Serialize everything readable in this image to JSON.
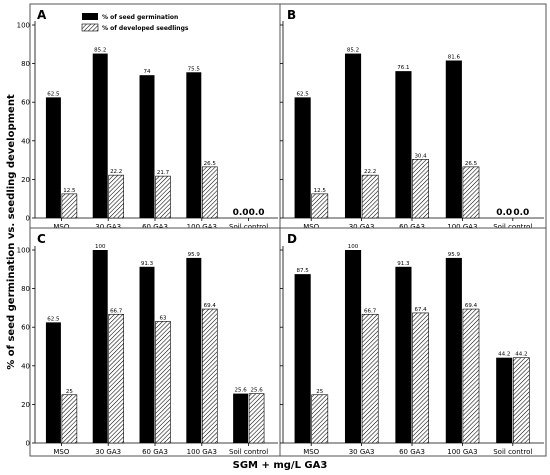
{
  "chart_data": {
    "type": "bar",
    "ylabel": "% of seed germination vs. seedling development",
    "xlabel": "SGM + mg/L GA3",
    "categories": [
      "MSO",
      "30 GA3",
      "60 GA3",
      "100 GA3",
      "Soil control"
    ],
    "ylim": [
      0,
      100
    ],
    "yticks": [
      0,
      20,
      40,
      60,
      80,
      100
    ],
    "legend": {
      "placement": "top-left inside panel A",
      "entries": [
        "% of seed germination",
        "% of developed seedlings"
      ]
    },
    "colors": {
      "germination": "#000000",
      "developed": "#ffffff"
    },
    "panels": [
      {
        "label": "A",
        "series": [
          {
            "name": "% of seed germination",
            "values": [
              62.5,
              85.2,
              74,
              75.5,
              0.0
            ]
          },
          {
            "name": "% of developed seedlings",
            "values": [
              12.5,
              22.2,
              21.7,
              26.5,
              0.0
            ]
          }
        ],
        "value_labels": [
          [
            "62.5",
            "85.2",
            "74",
            "75.5",
            "0.0"
          ],
          [
            "12.5",
            "22.2",
            "21.7",
            "26.5",
            "0.0"
          ]
        ]
      },
      {
        "label": "B",
        "series": [
          {
            "name": "% of seed germination",
            "values": [
              62.5,
              85.2,
              76.1,
              81.6,
              0.0
            ]
          },
          {
            "name": "% of developed seedlings",
            "values": [
              12.5,
              22.2,
              30.4,
              26.5,
              0.0
            ]
          }
        ],
        "value_labels": [
          [
            "62.5",
            "85.2",
            "76.1",
            "81.6",
            "0.0"
          ],
          [
            "12.5",
            "22.2",
            "30.4",
            "26.5",
            "0.0"
          ]
        ]
      },
      {
        "label": "C",
        "series": [
          {
            "name": "% of seed germination",
            "values": [
              62.5,
              100,
              91.3,
              95.9,
              25.6
            ]
          },
          {
            "name": "% of developed seedlings",
            "values": [
              25,
              66.7,
              63,
              69.4,
              25.6
            ]
          }
        ],
        "value_labels": [
          [
            "62.5",
            "100",
            "91.3",
            "95.9",
            "25.6"
          ],
          [
            "25",
            "66.7",
            "63",
            "69.4",
            "25.6"
          ]
        ]
      },
      {
        "label": "D",
        "series": [
          {
            "name": "% of seed germination",
            "values": [
              87.5,
              100,
              91.3,
              95.9,
              44.2
            ]
          },
          {
            "name": "% of developed seedlings",
            "values": [
              25,
              66.7,
              67.4,
              69.4,
              44.2
            ]
          }
        ],
        "value_labels": [
          [
            "87.5",
            "100",
            "91.3",
            "95.9",
            "44.2"
          ],
          [
            "25",
            "66.7",
            "67.4",
            "69.4",
            "44.2"
          ]
        ]
      }
    ]
  }
}
